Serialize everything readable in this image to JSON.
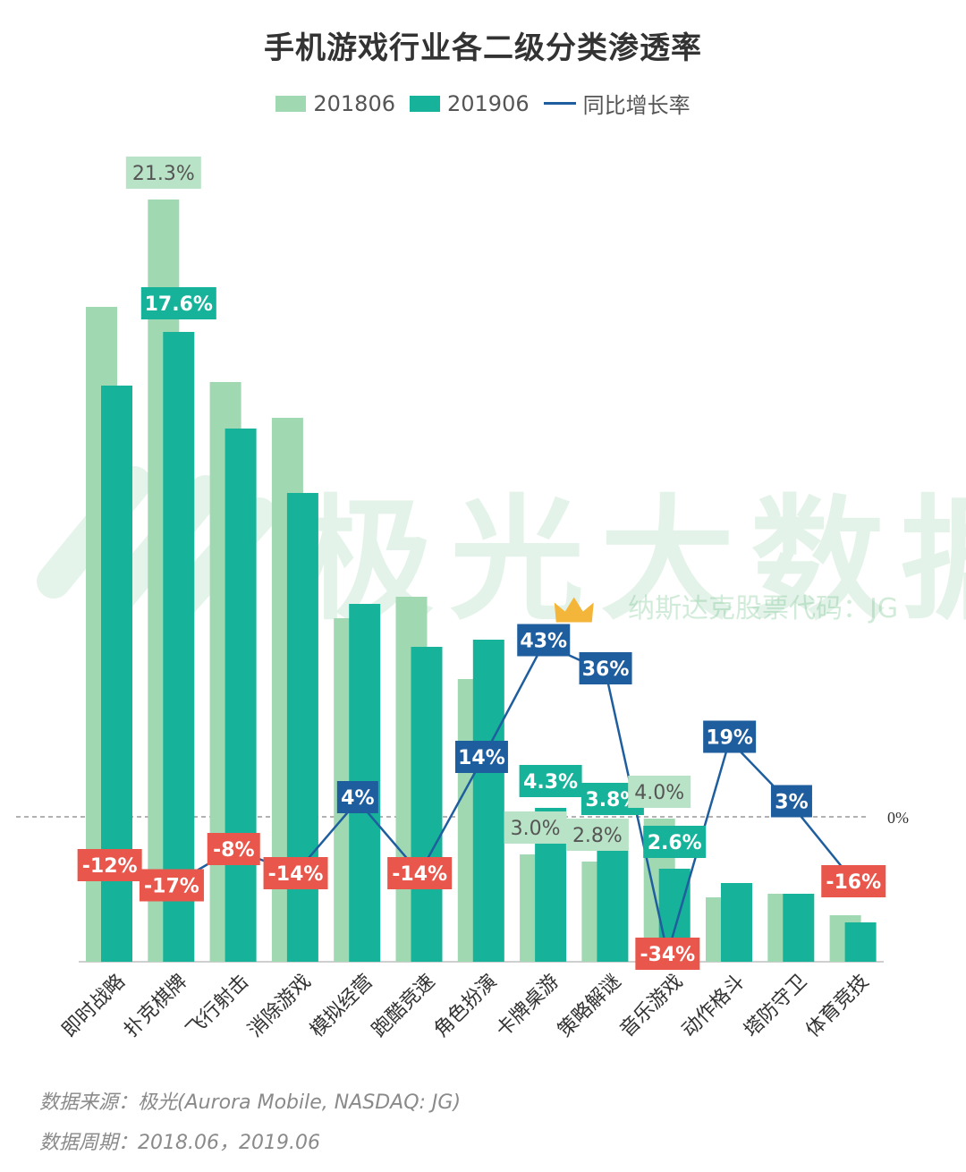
{
  "title": "手机游戏行业各二级分类渗透率",
  "legend": {
    "series_a": "201806",
    "series_b": "201906",
    "line": "同比增长率"
  },
  "colors": {
    "series_a": "#9fd8b1",
    "series_b": "#16b39a",
    "line": "#1f5e9e",
    "label_a_bg": "#b9e3c6",
    "label_b_bg": "#16b39a",
    "positive_bg": "#1f5e9e",
    "negative_bg": "#e9574c"
  },
  "watermark": {
    "main": "极光大数据",
    "sub": "纳斯达克股票代码：JG"
  },
  "footer": {
    "source": "数据来源：极光(Aurora Mobile, NASDAQ: JG)",
    "period": "数据周期：2018.06，2019.06"
  },
  "chart_data": {
    "type": "bar",
    "categories": [
      "即时战略",
      "扑克棋牌",
      "飞行射击",
      "消除游戏",
      "模拟经营",
      "跑酷竞速",
      "角色扮演",
      "卡牌桌游",
      "策略解谜",
      "音乐游戏",
      "动作格斗",
      "塔防守卫",
      "体育竞技"
    ],
    "series": [
      {
        "name": "201806",
        "values": [
          18.3,
          21.3,
          16.2,
          15.2,
          9.6,
          10.2,
          7.9,
          3.0,
          2.8,
          4.0,
          1.8,
          1.9,
          1.3
        ]
      },
      {
        "name": "201906",
        "values": [
          16.1,
          17.6,
          14.9,
          13.1,
          10.0,
          8.8,
          9.0,
          4.3,
          3.8,
          2.6,
          2.2,
          1.9,
          1.1
        ]
      }
    ],
    "line": {
      "name": "同比增长率",
      "values": [
        -12,
        -17,
        -8,
        -14,
        4,
        -14,
        14,
        43,
        36,
        -34,
        19,
        3,
        -16
      ],
      "labels": [
        "-12%",
        "-17%",
        "-8%",
        "-14%",
        "4%",
        "-14%",
        "14%",
        "43%",
        "36%",
        "-34%",
        "19%",
        "3%",
        "-16%"
      ]
    },
    "bar_labels": [
      {
        "series": 0,
        "index": 1,
        "text": "21.3%"
      },
      {
        "series": 1,
        "index": 1,
        "text": "17.6%"
      },
      {
        "series": 0,
        "index": 7,
        "text": "3.0%"
      },
      {
        "series": 1,
        "index": 7,
        "text": "4.3%"
      },
      {
        "series": 0,
        "index": 8,
        "text": "2.8%"
      },
      {
        "series": 1,
        "index": 8,
        "text": "3.8%"
      },
      {
        "series": 0,
        "index": 9,
        "text": "4.0%"
      },
      {
        "series": 1,
        "index": 9,
        "text": "2.6%"
      }
    ],
    "zero_label": "0%",
    "highlight_index": 7
  }
}
